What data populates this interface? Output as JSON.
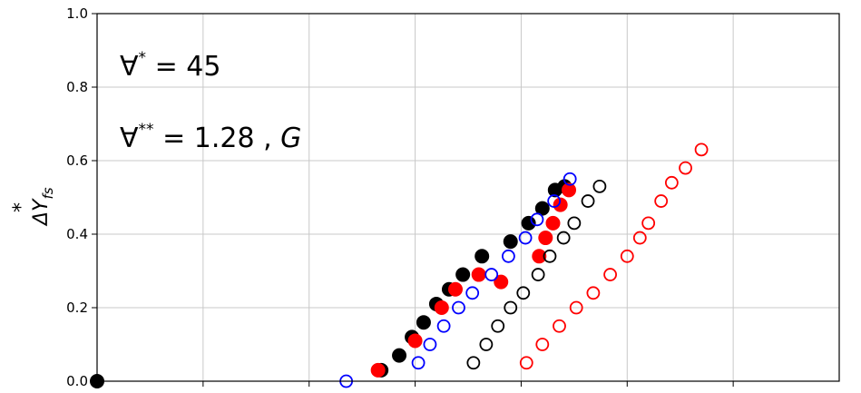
{
  "chart_data": {
    "type": "scatter",
    "title": "",
    "xlabel": "",
    "ylabel": "ΔY*fs",
    "ylabel_parts": {
      "delta": "Δ",
      "main": "Y",
      "sup": "*",
      "sub": "fs"
    },
    "xlim": [
      0,
      7
    ],
    "ylim": [
      0,
      1.0
    ],
    "y_ticks": [
      "0.0",
      "0.2",
      "0.4",
      "0.6",
      "0.8",
      "1.0"
    ],
    "x_ticks": [],
    "grid": true,
    "annotations": {
      "line1": {
        "symbol": "∀",
        "sup": "*",
        "text": " = 45"
      },
      "line2": {
        "symbol": "∀",
        "sup": "**",
        "text": " = 1.28 , ",
        "italic": "G"
      }
    },
    "series": [
      {
        "color": "#000000",
        "marker": "filled",
        "points": [
          [
            0,
            0
          ],
          [
            2.68,
            0.03
          ],
          [
            2.85,
            0.07
          ],
          [
            2.97,
            0.12
          ],
          [
            3.08,
            0.16
          ],
          [
            3.2,
            0.21
          ],
          [
            3.32,
            0.25
          ],
          [
            3.45,
            0.29
          ],
          [
            3.63,
            0.34
          ],
          [
            3.9,
            0.38
          ],
          [
            4.07,
            0.43
          ],
          [
            4.2,
            0.47
          ],
          [
            4.32,
            0.52
          ],
          [
            4.41,
            0.53
          ]
        ]
      },
      {
        "color": "#ff0000",
        "marker": "filled",
        "points": [
          [
            2.65,
            0.03
          ],
          [
            3.0,
            0.11
          ],
          [
            3.25,
            0.2
          ],
          [
            3.38,
            0.25
          ],
          [
            3.6,
            0.29
          ],
          [
            3.81,
            0.27
          ],
          [
            4.17,
            0.34
          ],
          [
            4.23,
            0.39
          ],
          [
            4.3,
            0.43
          ],
          [
            4.37,
            0.48
          ],
          [
            4.45,
            0.52
          ]
        ]
      },
      {
        "color": "#0000ff",
        "marker": "open",
        "points": [
          [
            2.35,
            0
          ],
          [
            3.03,
            0.05
          ],
          [
            3.14,
            0.1
          ],
          [
            3.27,
            0.15
          ],
          [
            3.41,
            0.2
          ],
          [
            3.54,
            0.24
          ],
          [
            3.72,
            0.29
          ],
          [
            3.88,
            0.34
          ],
          [
            4.04,
            0.39
          ],
          [
            4.15,
            0.44
          ],
          [
            4.31,
            0.49
          ],
          [
            4.46,
            0.55
          ]
        ]
      },
      {
        "color": "#000000",
        "marker": "open",
        "points": [
          [
            3.55,
            0.05
          ],
          [
            3.67,
            0.1
          ],
          [
            3.78,
            0.15
          ],
          [
            3.9,
            0.2
          ],
          [
            4.02,
            0.24
          ],
          [
            4.16,
            0.29
          ],
          [
            4.27,
            0.34
          ],
          [
            4.4,
            0.39
          ],
          [
            4.5,
            0.43
          ],
          [
            4.63,
            0.49
          ],
          [
            4.74,
            0.53
          ]
        ]
      },
      {
        "color": "#ff0000",
        "marker": "open",
        "points": [
          [
            4.05,
            0.05
          ],
          [
            4.2,
            0.1
          ],
          [
            4.36,
            0.15
          ],
          [
            4.52,
            0.2
          ],
          [
            4.68,
            0.24
          ],
          [
            4.84,
            0.29
          ],
          [
            5.0,
            0.34
          ],
          [
            5.12,
            0.39
          ],
          [
            5.2,
            0.43
          ],
          [
            5.32,
            0.49
          ],
          [
            5.42,
            0.54
          ],
          [
            5.55,
            0.58
          ],
          [
            5.7,
            0.63
          ]
        ]
      }
    ]
  }
}
